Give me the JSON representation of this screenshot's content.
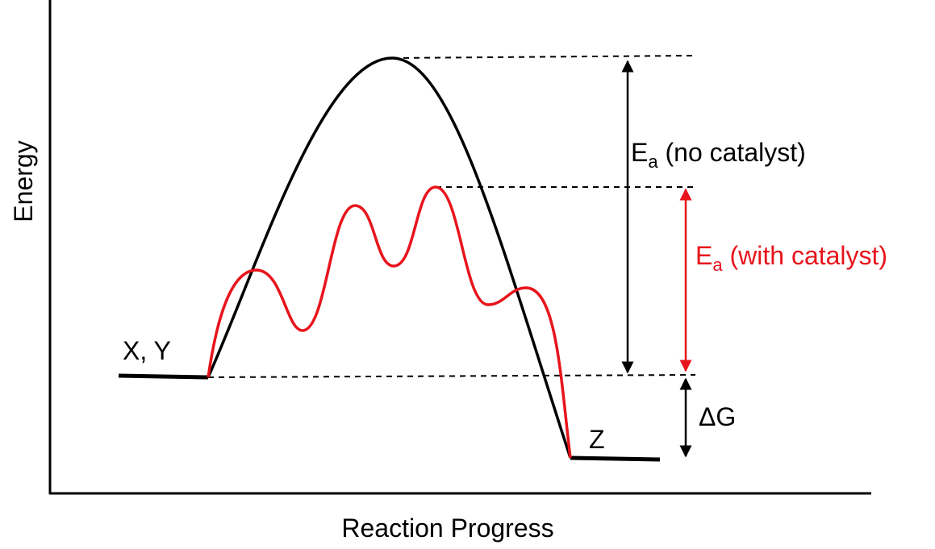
{
  "axes": {
    "ylabel": "Energy",
    "xlabel": "Reaction Progress"
  },
  "labels": {
    "reactants": "X, Y",
    "products": "Z",
    "ea_no_catalyst_main": "E",
    "ea_no_catalyst_sub": "a",
    "ea_no_catalyst_rest": " (no catalyst)",
    "ea_catalyst_main": "E",
    "ea_catalyst_sub": "a",
    "ea_catalyst_rest": " (with catalyst)",
    "delta_g": "ΔG"
  },
  "colors": {
    "uncatalyzed": "#000000",
    "catalyzed": "#e8141c",
    "axes": "#000000"
  }
}
